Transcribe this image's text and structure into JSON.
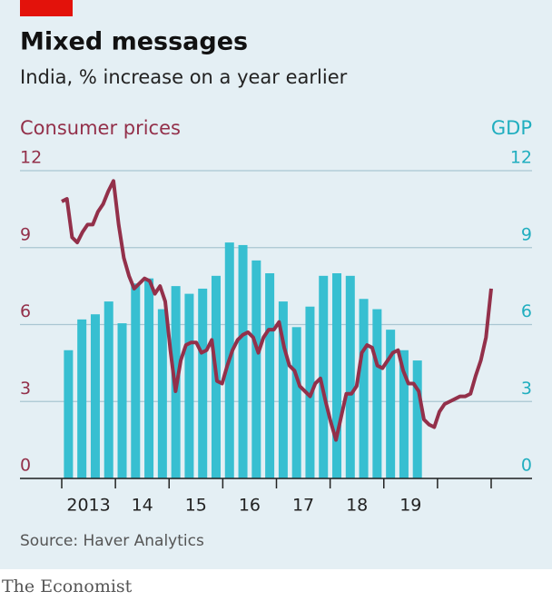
{
  "chart_data": {
    "type": "bar-line",
    "title": "Mixed messages",
    "subtitle": "India, % increase on a year earlier",
    "y_label": "Consumer prices",
    "y2_label": "GDP",
    "x_labels": [
      "2013",
      "14",
      "15",
      "16",
      "17",
      "18",
      "19"
    ],
    "ylim": [
      0,
      12
    ],
    "yticks": [
      0,
      3,
      6,
      9,
      12
    ],
    "y2lim": [
      0,
      12
    ],
    "y2ticks": [
      0,
      3,
      6,
      9,
      12
    ],
    "grid": true,
    "series": [
      {
        "name": "GDP",
        "type": "bar",
        "axis": "y2",
        "color": "#37bfd1",
        "values": [
          5.0,
          6.2,
          6.4,
          6.9,
          6.05,
          7.6,
          7.8,
          6.6,
          7.5,
          7.2,
          7.4,
          7.9,
          9.2,
          9.1,
          8.5,
          8.0,
          6.9,
          5.9,
          6.7,
          7.9,
          8.0,
          7.9,
          7.0,
          6.6,
          5.8,
          5.0,
          4.6
        ]
      },
      {
        "name": "Consumer prices",
        "type": "line",
        "axis": "y",
        "color": "#93304a",
        "values": [
          10.8,
          10.9,
          9.4,
          9.2,
          9.6,
          9.9,
          9.9,
          10.4,
          10.7,
          11.2,
          11.6,
          9.9,
          8.6,
          7.9,
          7.4,
          7.6,
          7.8,
          7.7,
          7.2,
          7.5,
          6.9,
          5.0,
          3.4,
          4.6,
          5.2,
          5.3,
          5.3,
          4.9,
          5.0,
          5.4,
          3.8,
          3.7,
          4.4,
          5.0,
          5.4,
          5.6,
          5.7,
          5.5,
          4.9,
          5.5,
          5.8,
          5.8,
          6.1,
          5.1,
          4.4,
          4.2,
          3.6,
          3.4,
          3.2,
          3.7,
          3.9,
          3.0,
          2.2,
          1.5,
          2.4,
          3.3,
          3.3,
          3.6,
          4.9,
          5.2,
          5.1,
          4.4,
          4.3,
          4.6,
          4.9,
          5.0,
          4.2,
          3.7,
          3.7,
          3.4,
          2.3,
          2.1,
          2.0,
          2.6,
          2.9,
          3.0,
          3.1,
          3.2,
          3.2,
          3.3,
          4.0,
          4.6,
          5.5,
          7.4
        ]
      }
    ],
    "source": "Source: Haver Analytics",
    "brand": "The Economist"
  }
}
